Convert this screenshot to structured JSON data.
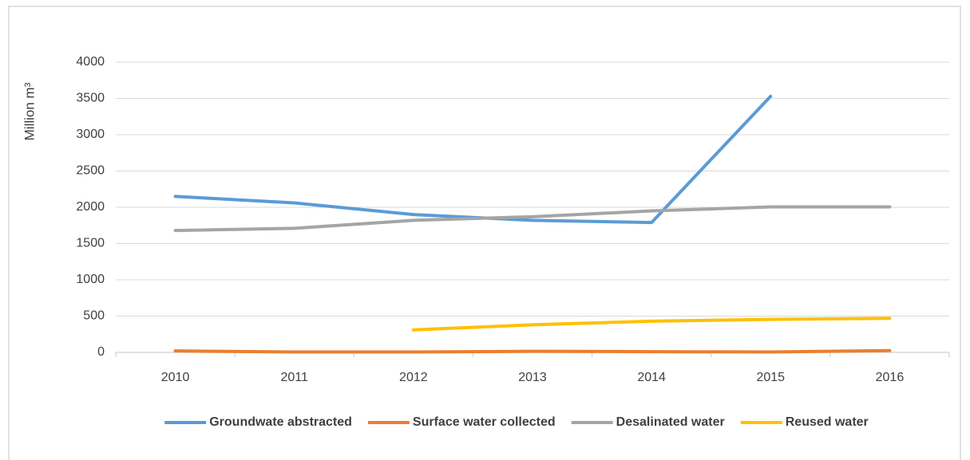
{
  "chart_data": {
    "type": "line",
    "y_label": "Million m³",
    "categories": [
      "2010",
      "2011",
      "2012",
      "2013",
      "2014",
      "2015",
      "2016"
    ],
    "series": [
      {
        "name": "Groundwate abstracted",
        "color": "#5b9bd5",
        "values": [
          2150,
          2060,
          1900,
          1820,
          1790,
          3530,
          null
        ]
      },
      {
        "name": "Surface water collected",
        "color": "#ed7d31",
        "values": [
          20,
          5,
          5,
          15,
          10,
          5,
          25
        ]
      },
      {
        "name": "Desalinated water",
        "color": "#a5a5a5",
        "values": [
          1680,
          1710,
          1820,
          1870,
          1950,
          2005,
          2005
        ]
      },
      {
        "name": "Reused water",
        "color": "#ffc000",
        "values": [
          null,
          null,
          310,
          380,
          430,
          455,
          470
        ]
      }
    ],
    "ylim": [
      0,
      4000
    ],
    "yticks": [
      0,
      500,
      1000,
      1500,
      2000,
      2500,
      3000,
      3500,
      4000
    ],
    "grid": true,
    "legend": "bottom"
  }
}
